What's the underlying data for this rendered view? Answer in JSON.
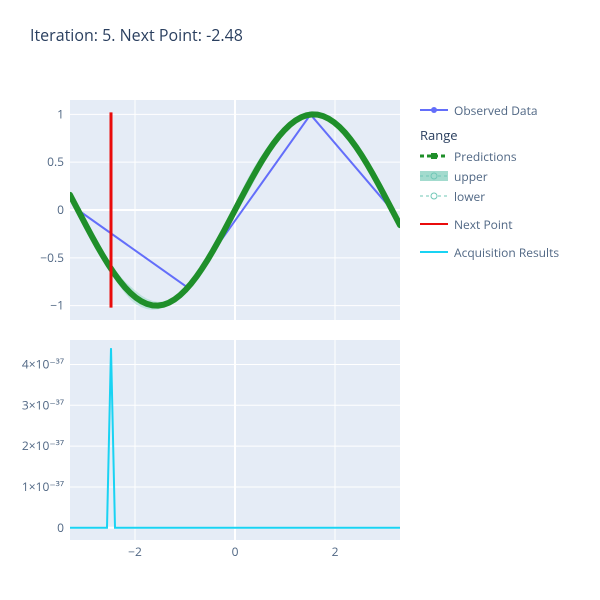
{
  "title": "Iteration: 5. Next Point: -2.48",
  "legend": {
    "observed": "Observed Data",
    "range_title": "Range",
    "predictions": "Predictions",
    "upper": "upper",
    "lower": "lower",
    "next_point": "Next Point",
    "acquisition": "Acquisition Results"
  },
  "colors": {
    "bg": "#e5ecf6",
    "grid": "#ffffff",
    "text": "#506784",
    "observed": "#636efa",
    "predictions": "#1f8f2a",
    "upper_fill": "#a3dbce",
    "next_point": "#e90b0b",
    "acquisition": "#19d3f3"
  },
  "chart1": {
    "type": "line",
    "xlim": [
      -3.3,
      3.3
    ],
    "ylim": [
      -1.15,
      1.15
    ],
    "xticks": [
      -2,
      0,
      2
    ],
    "yticks": [
      -1,
      -0.5,
      0,
      0.5,
      1
    ],
    "ytick_labels": [
      "−1",
      "−0.5",
      "0",
      "0.5",
      "1"
    ],
    "next_point_x": -2.48,
    "next_point_y": [
      -1.02,
      1.02
    ],
    "observed": {
      "x": [
        -3.14,
        -0.95,
        1.51,
        3.14
      ],
      "y": [
        0,
        -0.81,
        0.998,
        0
      ]
    },
    "predictions_width": 6,
    "observed_width": 2,
    "observed_marker_r": 3
  },
  "chart2": {
    "type": "line",
    "xlim": [
      -3.3,
      3.3
    ],
    "ylim": [
      -0.3,
      4.6
    ],
    "xticks": [
      -2,
      0,
      2
    ],
    "xtick_labels": [
      "−2",
      "0",
      "2"
    ],
    "yticks": [
      0,
      1,
      2,
      3,
      4
    ],
    "ytick_labels": [
      "0",
      "1×10⁻³⁷",
      "2×10⁻³⁷",
      "3×10⁻³⁷",
      "4×10⁻³⁷"
    ],
    "peak_x": -2.48,
    "peak_y": 4.4,
    "peak_halfwidth": 0.08,
    "line_width": 2
  }
}
